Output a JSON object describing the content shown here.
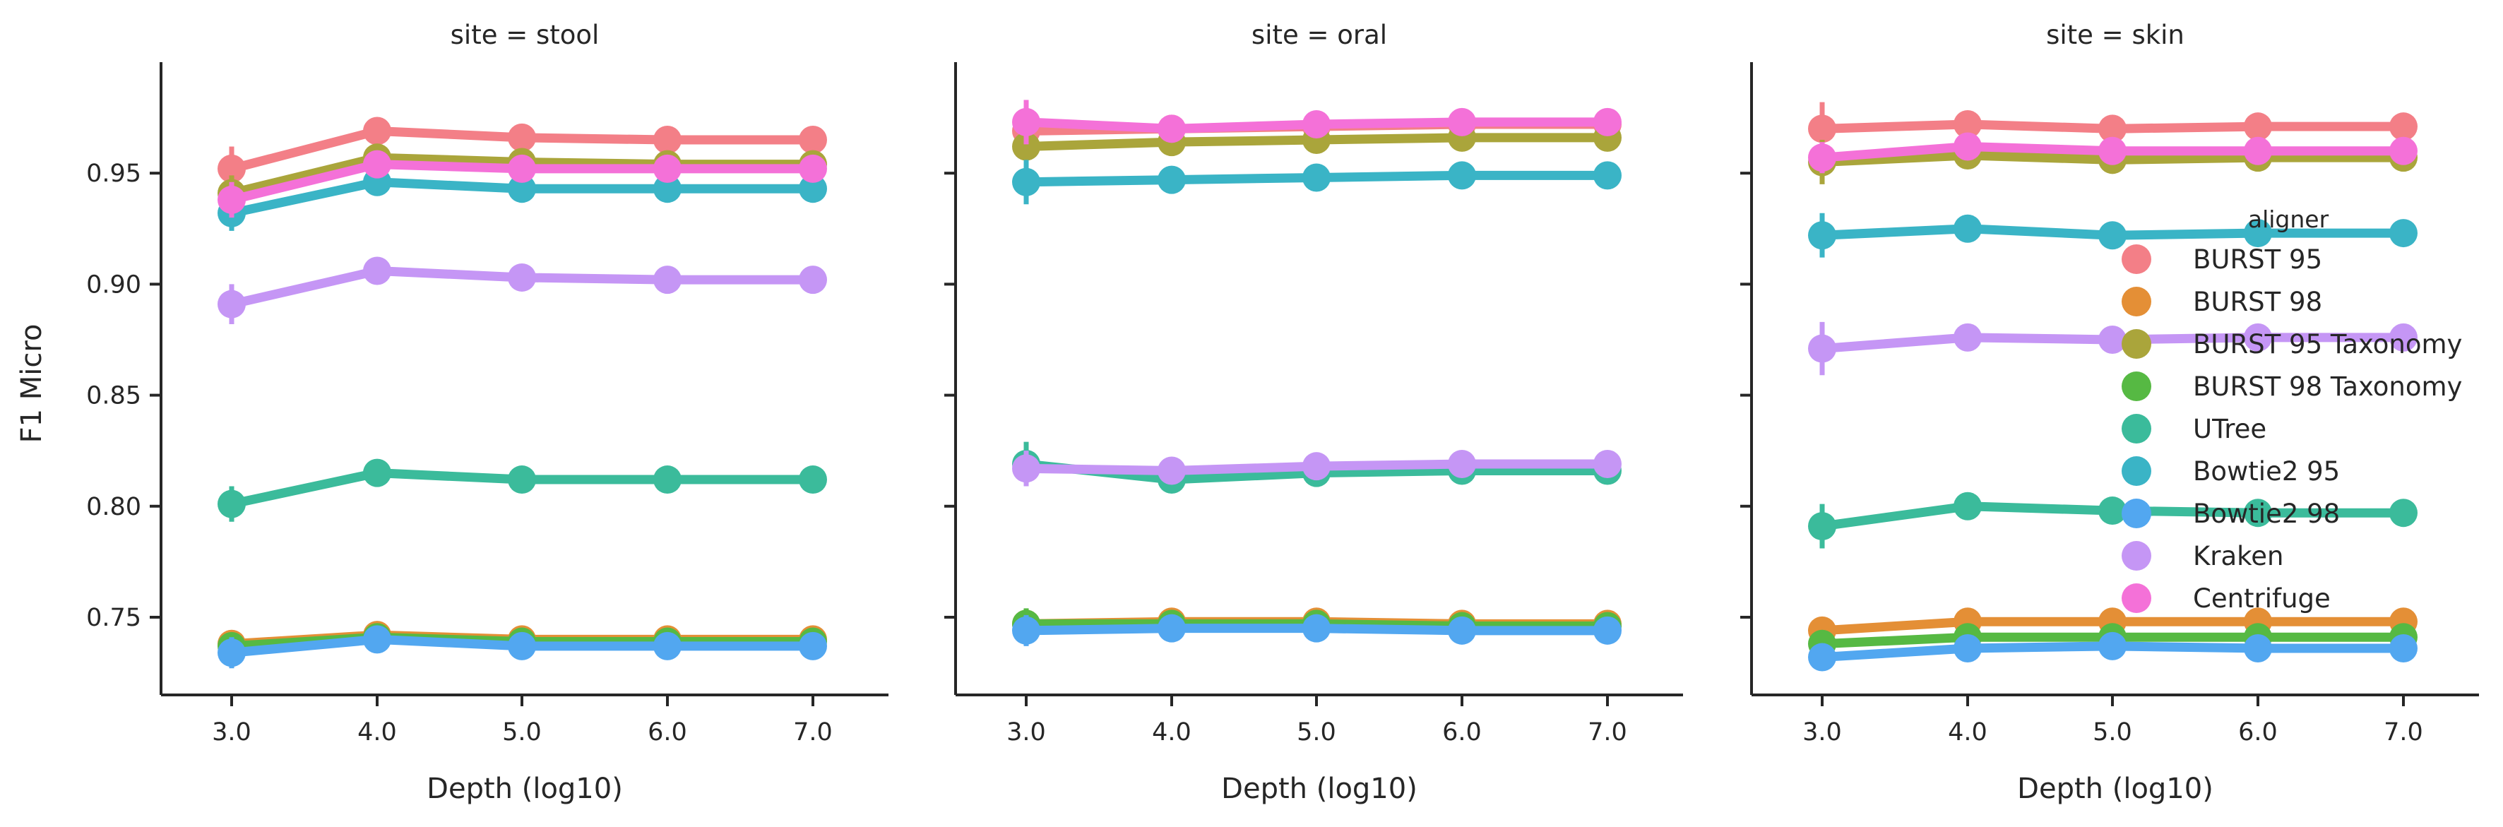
{
  "chart_data": {
    "type": "line",
    "ylabel": "F1 Micro",
    "xlabel": "Depth (log10)",
    "x": [
      "3.0",
      "4.0",
      "5.0",
      "6.0",
      "7.0"
    ],
    "ylim": [
      0.715,
      1.0
    ],
    "yticks": [
      "0.75",
      "0.80",
      "0.85",
      "0.90",
      "0.95"
    ],
    "legend": {
      "title": "aligner",
      "placement": "right, inside third panel"
    },
    "series_colors": {
      "BURST 95": "#f37f87",
      "BURST 98": "#e48f36",
      "BURST 95 Taxonomy": "#aaa53b",
      "BURST 98 Taxonomy": "#56b943",
      "UTree": "#3bbb9b",
      "Bowtie2 95": "#3ab4c6",
      "Bowtie2 98": "#52a7f0",
      "Kraken": "#c596f5",
      "Centrifuge": "#f471d8"
    },
    "panels": [
      {
        "title": "site = stool",
        "series": [
          {
            "name": "BURST 95",
            "values": [
              0.952,
              0.969,
              0.966,
              0.965,
              0.965
            ],
            "err": [
              0.01,
              0.003,
              0.002,
              0.002,
              0.002
            ]
          },
          {
            "name": "BURST 98",
            "values": [
              0.738,
              0.742,
              0.74,
              0.74,
              0.74
            ],
            "err": [
              0.006,
              0.002,
              0.002,
              0.002,
              0.002
            ]
          },
          {
            "name": "BURST 95 Taxonomy",
            "values": [
              0.941,
              0.957,
              0.955,
              0.954,
              0.954
            ],
            "err": [
              0.008,
              0.003,
              0.002,
              0.002,
              0.002
            ]
          },
          {
            "name": "BURST 98 Taxonomy",
            "values": [
              0.737,
              0.741,
              0.739,
              0.739,
              0.739
            ],
            "err": [
              0.006,
              0.002,
              0.002,
              0.002,
              0.002
            ]
          },
          {
            "name": "UTree",
            "values": [
              0.801,
              0.815,
              0.812,
              0.812,
              0.812
            ],
            "err": [
              0.008,
              0.003,
              0.002,
              0.002,
              0.002
            ]
          },
          {
            "name": "Bowtie2 95",
            "values": [
              0.932,
              0.946,
              0.943,
              0.943,
              0.943
            ],
            "err": [
              0.008,
              0.003,
              0.002,
              0.002,
              0.002
            ]
          },
          {
            "name": "Bowtie2 98",
            "values": [
              0.734,
              0.74,
              0.737,
              0.737,
              0.737
            ],
            "err": [
              0.007,
              0.003,
              0.002,
              0.002,
              0.002
            ]
          },
          {
            "name": "Kraken",
            "values": [
              0.891,
              0.906,
              0.903,
              0.902,
              0.902
            ],
            "err": [
              0.009,
              0.003,
              0.002,
              0.002,
              0.002
            ]
          },
          {
            "name": "Centrifuge",
            "values": [
              0.938,
              0.954,
              0.952,
              0.952,
              0.952
            ],
            "err": [
              0.008,
              0.003,
              0.002,
              0.002,
              0.002
            ]
          }
        ]
      },
      {
        "title": "site = oral",
        "series": [
          {
            "name": "BURST 95",
            "values": [
              0.969,
              0.97,
              0.971,
              0.972,
              0.972
            ],
            "err": [
              0.006,
              0.003,
              0.002,
              0.002,
              0.002
            ]
          },
          {
            "name": "BURST 98",
            "values": [
              0.747,
              0.748,
              0.748,
              0.747,
              0.747
            ],
            "err": [
              0.006,
              0.003,
              0.002,
              0.002,
              0.002
            ]
          },
          {
            "name": "BURST 95 Taxonomy",
            "values": [
              0.962,
              0.964,
              0.965,
              0.966,
              0.966
            ],
            "err": [
              0.007,
              0.003,
              0.002,
              0.002,
              0.002
            ]
          },
          {
            "name": "BURST 98 Taxonomy",
            "values": [
              0.747,
              0.747,
              0.747,
              0.746,
              0.746
            ],
            "err": [
              0.007,
              0.003,
              0.002,
              0.002,
              0.002
            ]
          },
          {
            "name": "UTree",
            "values": [
              0.819,
              0.812,
              0.815,
              0.816,
              0.816
            ],
            "err": [
              0.01,
              0.003,
              0.002,
              0.002,
              0.002
            ]
          },
          {
            "name": "Bowtie2 95",
            "values": [
              0.946,
              0.947,
              0.948,
              0.949,
              0.949
            ],
            "err": [
              0.01,
              0.003,
              0.002,
              0.002,
              0.002
            ]
          },
          {
            "name": "Bowtie2 98",
            "values": [
              0.744,
              0.745,
              0.745,
              0.744,
              0.744
            ],
            "err": [
              0.007,
              0.003,
              0.002,
              0.002,
              0.002
            ]
          },
          {
            "name": "Kraken",
            "values": [
              0.817,
              0.816,
              0.818,
              0.819,
              0.819
            ],
            "err": [
              0.008,
              0.003,
              0.002,
              0.002,
              0.002
            ]
          },
          {
            "name": "Centrifuge",
            "values": [
              0.973,
              0.97,
              0.972,
              0.973,
              0.973
            ],
            "err": [
              0.01,
              0.003,
              0.002,
              0.002,
              0.002
            ]
          }
        ]
      },
      {
        "title": "site = skin",
        "series": [
          {
            "name": "BURST 95",
            "values": [
              0.97,
              0.972,
              0.97,
              0.971,
              0.971
            ],
            "err": [
              0.012,
              0.003,
              0.002,
              0.002,
              0.002
            ]
          },
          {
            "name": "BURST 98",
            "values": [
              0.744,
              0.748,
              0.748,
              0.748,
              0.748
            ],
            "err": [
              0.005,
              0.002,
              0.002,
              0.002,
              0.002
            ]
          },
          {
            "name": "BURST 95 Taxonomy",
            "values": [
              0.955,
              0.958,
              0.956,
              0.957,
              0.957
            ],
            "err": [
              0.01,
              0.003,
              0.002,
              0.002,
              0.002
            ]
          },
          {
            "name": "BURST 98 Taxonomy",
            "values": [
              0.738,
              0.741,
              0.741,
              0.741,
              0.741
            ],
            "err": [
              0.005,
              0.002,
              0.002,
              0.002,
              0.002
            ]
          },
          {
            "name": "UTree",
            "values": [
              0.791,
              0.8,
              0.798,
              0.797,
              0.797
            ],
            "err": [
              0.01,
              0.003,
              0.002,
              0.002,
              0.002
            ]
          },
          {
            "name": "Bowtie2 95",
            "values": [
              0.922,
              0.925,
              0.922,
              0.923,
              0.923
            ],
            "err": [
              0.01,
              0.003,
              0.002,
              0.002,
              0.002
            ]
          },
          {
            "name": "Bowtie2 98",
            "values": [
              0.732,
              0.736,
              0.737,
              0.736,
              0.736
            ],
            "err": [
              0.004,
              0.002,
              0.002,
              0.002,
              0.002
            ]
          },
          {
            "name": "Kraken",
            "values": [
              0.871,
              0.876,
              0.875,
              0.876,
              0.876
            ],
            "err": [
              0.012,
              0.003,
              0.002,
              0.002,
              0.002
            ]
          },
          {
            "name": "Centrifuge",
            "values": [
              0.957,
              0.962,
              0.96,
              0.96,
              0.96
            ],
            "err": [
              0.007,
              0.003,
              0.002,
              0.002,
              0.002
            ]
          }
        ]
      }
    ]
  }
}
